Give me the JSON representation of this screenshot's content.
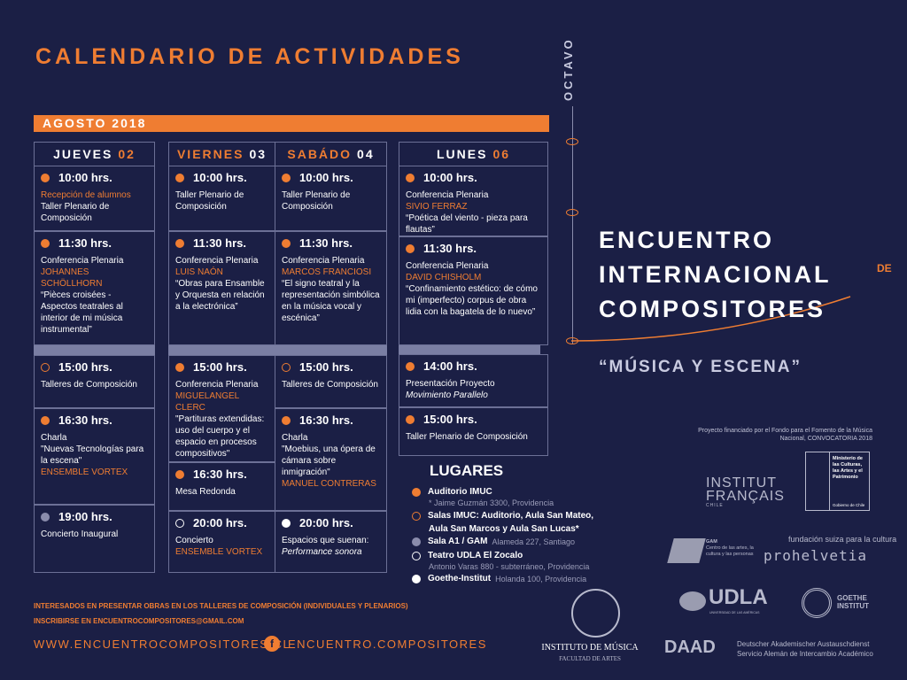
{
  "title": "CALENDARIO DE ACTIVIDADES",
  "month": "AGOSTO 2018",
  "colors": {
    "background": "#1b1f45",
    "accent": "#ef7d32",
    "band": "#7a7ea3"
  },
  "days": [
    {
      "name": "JUEVES",
      "num": "02",
      "name_color": "white",
      "num_color": "orange",
      "cells": [
        {
          "dot": "fill",
          "time": "10:00 hrs.",
          "lines": [
            {
              "t": "Recepción de alumnos",
              "s": "orange"
            },
            {
              "t": "Taller Plenario de Composición",
              "s": ""
            }
          ]
        },
        {
          "dot": "fill",
          "time": "11:30 hrs.",
          "lines": [
            {
              "t": "Conferencia Plenaria",
              "s": ""
            },
            {
              "t": "JOHANNES SCHÖLLHORN",
              "s": "orange"
            },
            {
              "t": "“Pièces croisées - Aspectos teatrales al interior de mi música instrumental”",
              "s": ""
            }
          ]
        },
        {
          "dot": "ring",
          "time": "15:00 hrs.",
          "lines": [
            {
              "t": "Talleres de Composición",
              "s": ""
            }
          ]
        },
        {
          "dot": "fill",
          "time": "16:30 hrs.",
          "lines": [
            {
              "t": "Charla",
              "s": ""
            },
            {
              "t": "\"Nuevas Tecnologías para la escena\"",
              "s": ""
            },
            {
              "t": "ENSEMBLE VORTEX",
              "s": "orange"
            }
          ]
        },
        {
          "dot": "grey",
          "time": "19:00 hrs.",
          "lines": [
            {
              "t": "Concierto Inaugural",
              "s": ""
            }
          ]
        }
      ]
    },
    {
      "name": "VIERNES",
      "num": "03",
      "name_color": "orange",
      "num_color": "white",
      "cells": [
        {
          "dot": "fill",
          "time": "10:00 hrs.",
          "lines": [
            {
              "t": "Taller Plenario de Composición",
              "s": ""
            }
          ]
        },
        {
          "dot": "fill",
          "time": "11:30 hrs.",
          "lines": [
            {
              "t": "Conferencia Plenaria",
              "s": ""
            },
            {
              "t": "LUIS NAÓN",
              "s": "orange"
            },
            {
              "t": "“Obras para Ensamble y Orquesta en relación a la electrónica”",
              "s": ""
            }
          ]
        },
        {
          "dot": "fill",
          "time": "15:00 hrs.",
          "lines": [
            {
              "t": "Conferencia Plenaria",
              "s": ""
            },
            {
              "t": "MIGUELANGEL CLERC",
              "s": "orange"
            },
            {
              "t": "\"Partituras extendidas: uso del cuerpo y el espacio en procesos compositivos\"",
              "s": ""
            }
          ]
        },
        {
          "dot": "fill",
          "time": "16:30 hrs.",
          "lines": [
            {
              "t": "Mesa Redonda",
              "s": ""
            }
          ]
        },
        {
          "dot": "wring",
          "time": "20:00 hrs.",
          "lines": [
            {
              "t": "Concierto",
              "s": ""
            },
            {
              "t": "ENSEMBLE VORTEX",
              "s": "orange"
            }
          ]
        }
      ]
    },
    {
      "name": "SABÁDO",
      "num": "04",
      "name_color": "orange",
      "num_color": "white",
      "cells": [
        {
          "dot": "fill",
          "time": "10:00 hrs.",
          "lines": [
            {
              "t": "Taller Plenario de Composición",
              "s": ""
            }
          ]
        },
        {
          "dot": "fill",
          "time": "11:30 hrs.",
          "lines": [
            {
              "t": "Conferencia Plenaria",
              "s": ""
            },
            {
              "t": "MARCOS FRANCIOSI",
              "s": "orange"
            },
            {
              "t": "“El signo teatral y la representación simbólica en la música vocal y escénica”",
              "s": ""
            }
          ]
        },
        {
          "dot": "ring",
          "time": "15:00 hrs.",
          "lines": [
            {
              "t": "Talleres de Composición",
              "s": ""
            }
          ]
        },
        {
          "dot": "fill",
          "time": "16:30 hrs.",
          "lines": [
            {
              "t": "Charla",
              "s": ""
            },
            {
              "t": "\"Moebius, una ópera de cámara sobre inmigración\"",
              "s": ""
            },
            {
              "t": "MANUEL CONTRERAS",
              "s": "orange"
            }
          ]
        },
        {
          "dot": "white",
          "time": "20:00 hrs.",
          "lines": [
            {
              "t": "Espacios que suenan:",
              "s": ""
            },
            {
              "t": "Performance sonora",
              "s": "it"
            }
          ]
        }
      ]
    },
    {
      "name": "LUNES",
      "num": "06",
      "name_color": "white",
      "num_color": "orange",
      "cells": [
        {
          "dot": "fill",
          "time": "10:00 hrs.",
          "lines": [
            {
              "t": "Conferencia Plenaria",
              "s": ""
            },
            {
              "t": "SIVIO FERRAZ",
              "s": "orange"
            },
            {
              "t": "“Poética del viento - pieza para flautas”",
              "s": ""
            }
          ]
        },
        {
          "dot": "fill",
          "time": "11:30 hrs.",
          "lines": [
            {
              "t": "Conferencia Plenaria",
              "s": ""
            },
            {
              "t": "DAVID CHISHOLM",
              "s": "orange"
            },
            {
              "t": "“Confinamiento estético: de cómo mi (imperfecto) corpus de obra lidia con la bagatela de lo nuevo”",
              "s": ""
            }
          ]
        },
        {
          "dot": "fill",
          "time": "14:00 hrs.",
          "lines": [
            {
              "t": "Presentación Proyecto",
              "s": ""
            },
            {
              "t": "Movimiento Parallelo",
              "s": "it"
            }
          ]
        },
        {
          "dot": "fill",
          "time": "15:00 hrs.",
          "lines": [
            {
              "t": "Taller Plenario de Composición",
              "s": ""
            }
          ]
        }
      ]
    }
  ],
  "event": {
    "edition": "OCTAVO",
    "line1": "ENCUENTRO",
    "line2": "INTERNACIONAL",
    "de": "DE",
    "line3": "COMPOSITORES",
    "motto": "“MÚSICA Y ESCENA”"
  },
  "funding": "Proyecto financiado por el Fondo para el Fomento de la Música Nacional, CONVOCATORIA 2018",
  "lugares": {
    "title": "LUGARES",
    "items": [
      {
        "dot": "fill",
        "name": "Auditorio IMUC",
        "addr": "* Jaime Guzmán 3300, Providencia"
      },
      {
        "dot": "ring",
        "name": "Salas IMUC: Auditorio, Aula San Mateo,",
        "addr": "Aula San Marcos y Aula San Lucas*"
      },
      {
        "dot": "grey",
        "name": "Sala A1 / GAM",
        "addr": "Alameda 227, Santiago"
      },
      {
        "dot": "wring",
        "name": "Teatro UDLA El Zocalo",
        "addr": "Antonio Varas 880 - subterráneo, Providencia"
      },
      {
        "dot": "white",
        "name": "Goethe-Institut",
        "addr": "Holanda 100, Providencia"
      }
    ]
  },
  "footer": {
    "line1": "INTERESADOS EN PRESENTAR OBRAS EN LOS TALLERES DE COMPOSICIÓN (INDIVIDUALES Y PLENARIOS)",
    "line2": "INSCRIBIRSE EN ENCUENTROCOMPOSITORES@GMAIL.COM",
    "website": "WWW.ENCUENTROCOMPOSITORES.CL",
    "facebook": "ENCUENTRO.COMPOSITORES"
  },
  "logos": {
    "imuc1": "INSTITUTO DE MÚSICA",
    "imuc2": "FACULTAD DE ARTES",
    "if1": "INSTITUT",
    "if2": "FRANÇAIS",
    "if3": "CHILE",
    "min1": "Ministerio de las Culturas, las Artes y el Patrimonio",
    "min2": "Gobierno de Chile",
    "gam1": "GAM",
    "gam2": "Centro de las artes, la cultura y las personas",
    "ph1": "fundación suiza para la cultura",
    "ph2": "prohelvetia",
    "udla": "UDLA",
    "udla2": "UNIVERSIDAD DE LAS AMÉRICAS",
    "goethe1": "GOETHE",
    "goethe2": "INSTITUT",
    "daad": "DAAD",
    "daad1": "Deutscher Akademischer Austauschdienst",
    "daad2": "Servicio Alemán de Intercambio Académico"
  }
}
